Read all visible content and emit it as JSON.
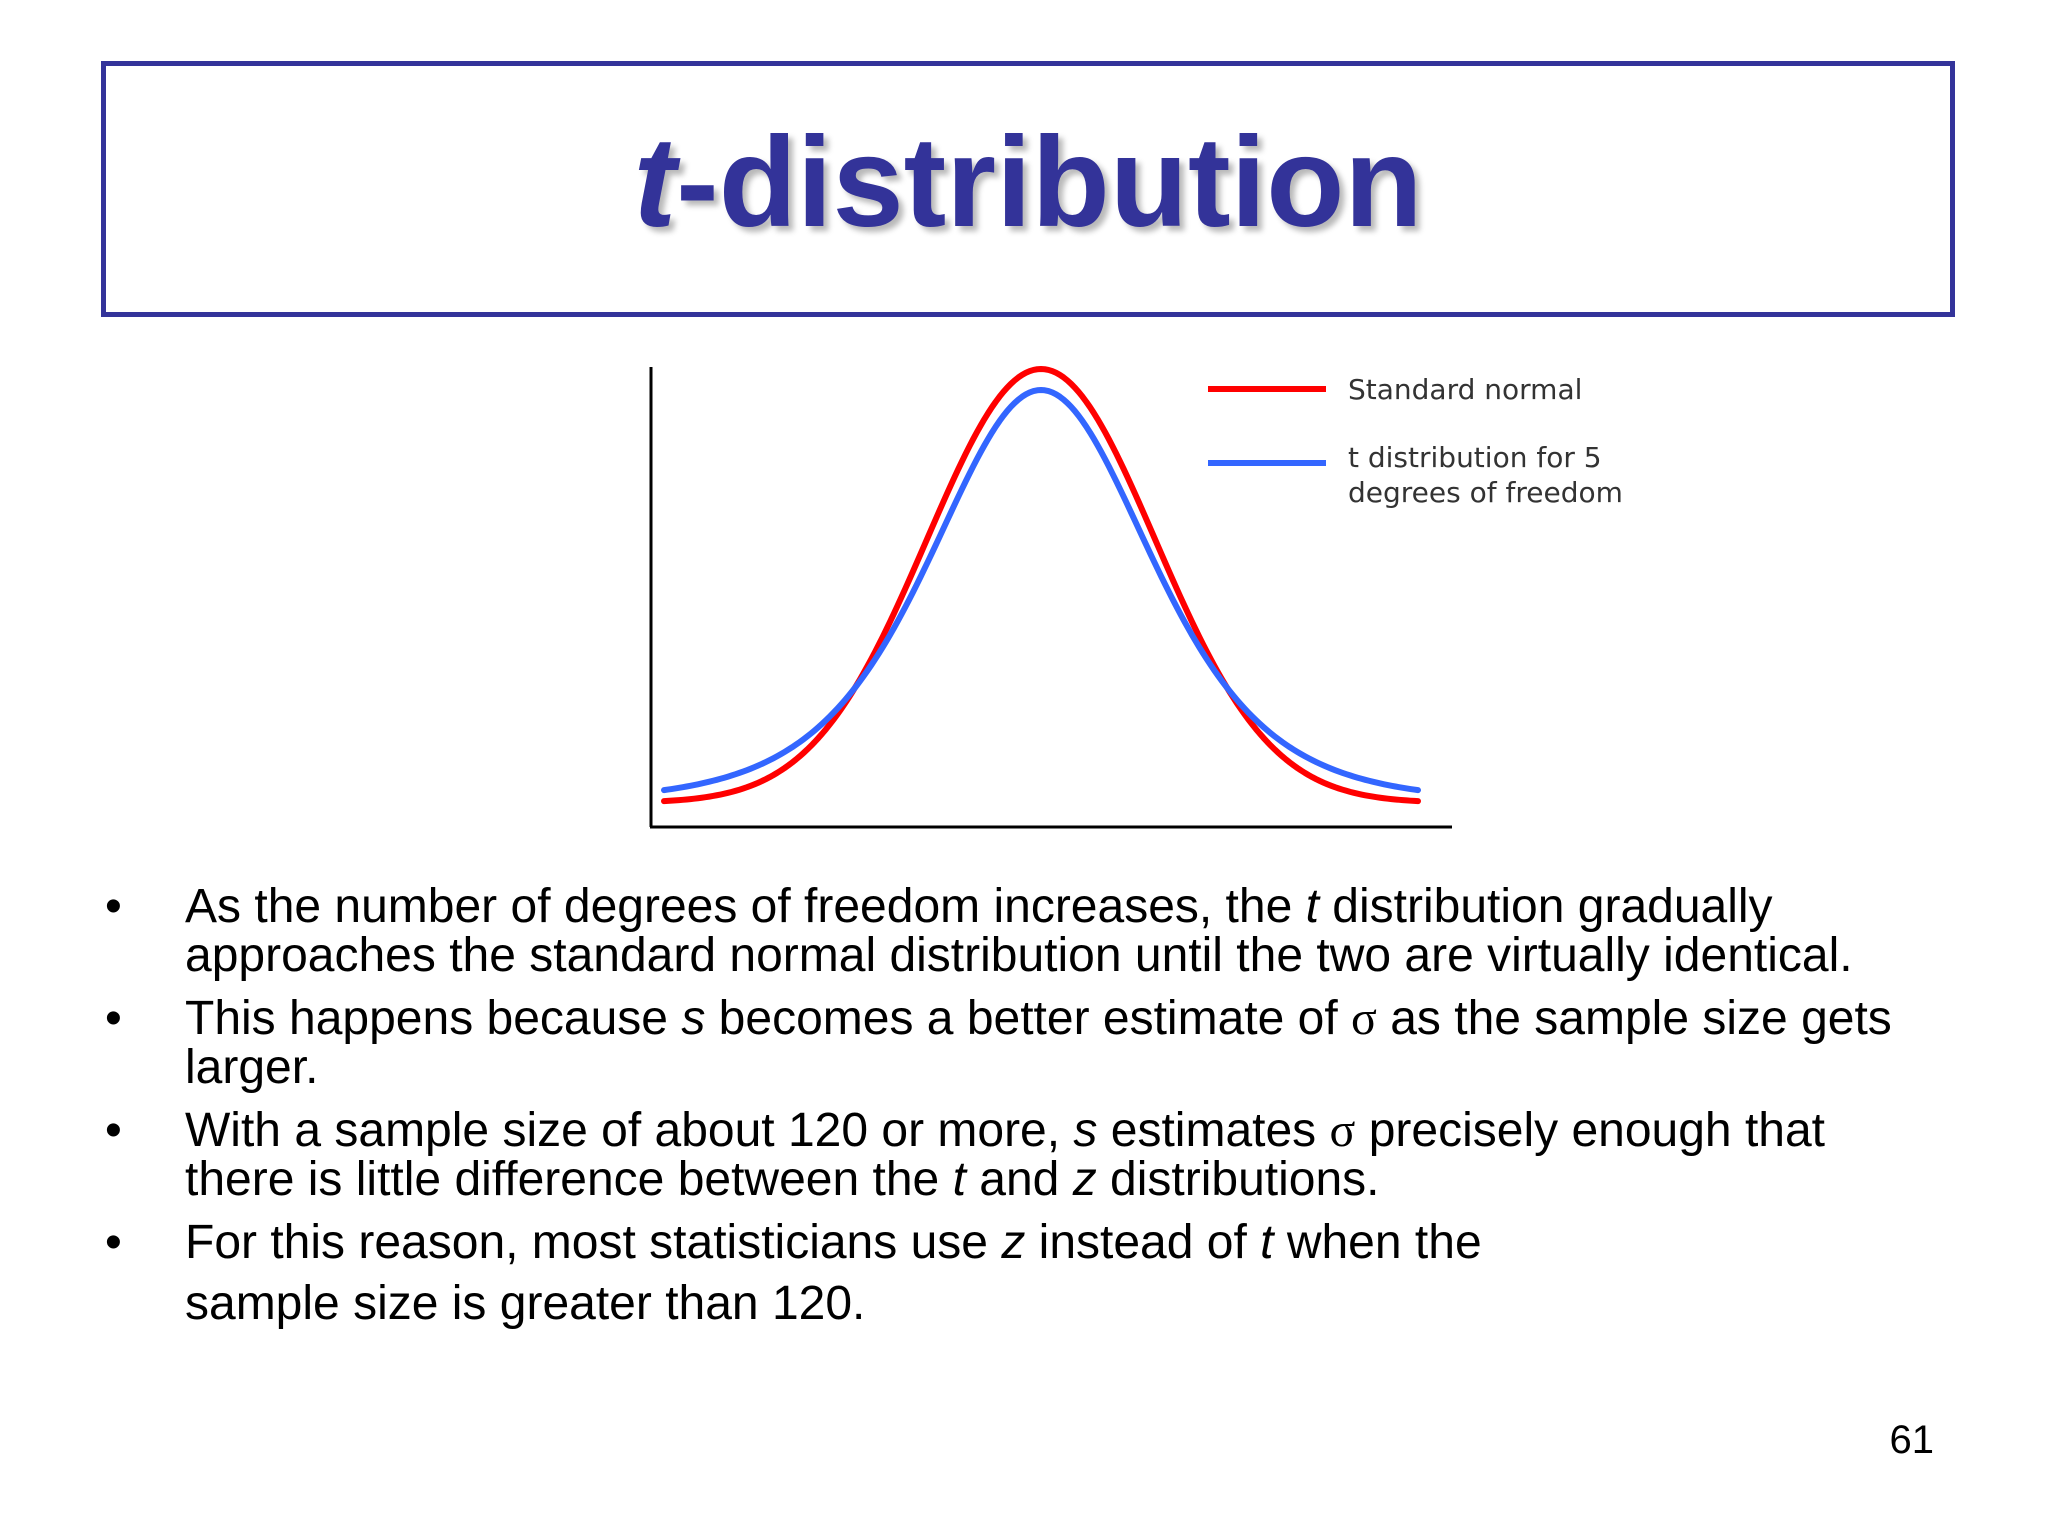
{
  "title": {
    "italic_part": "t",
    "rest": "-distribution"
  },
  "chart_data": {
    "type": "line",
    "xlabel": "",
    "ylabel": "",
    "grid": false,
    "legend_placement": "top-right",
    "legend": [
      {
        "label_lines": [
          "Standard normal"
        ],
        "color": "#ff0000"
      },
      {
        "label_lines": [
          "t distribution for 5",
          "degrees of freedom"
        ],
        "color": "#3366ff"
      }
    ],
    "series": [
      {
        "name": "Standard normal",
        "color": "#ff0000",
        "distribution": "normal",
        "x_range": [
          -3.3,
          3.3
        ]
      },
      {
        "name": "t distribution for 5 degrees of freedom",
        "color": "#3366ff",
        "distribution": "t",
        "df": 5,
        "x_range": [
          -3.3,
          3.3
        ]
      }
    ]
  },
  "bullets": [
    {
      "marker": "•",
      "parts": [
        {
          "t": "As the number of degrees of freedom increases, the "
        },
        {
          "t": "t",
          "i": true
        },
        {
          "t": " distribution gradually approaches the standard normal distribution until the two are virtually identical."
        }
      ]
    },
    {
      "marker": "•",
      "parts": [
        {
          "t": "This happens because "
        },
        {
          "t": "s",
          "i": true
        },
        {
          "t": " becomes a better estimate of "
        },
        {
          "t": "σ",
          "serif": true
        },
        {
          "t": " as the sample size gets larger."
        }
      ]
    },
    {
      "marker": "•",
      "parts": [
        {
          "t": "With a sample size of about 120 or more, "
        },
        {
          "t": "s",
          "i": true
        },
        {
          "t": " estimates "
        },
        {
          "t": "σ",
          "serif": true
        },
        {
          "t": " precisely enough that there is little difference between the "
        },
        {
          "t": "t",
          "i": true
        },
        {
          "t": " and "
        },
        {
          "t": "z",
          "i": true
        },
        {
          "t": " distributions."
        }
      ]
    },
    {
      "marker": "•",
      "parts": [
        {
          "t": "For this reason, most statisticians use "
        },
        {
          "t": "z",
          "i": true
        },
        {
          "t": " instead of "
        },
        {
          "t": "t",
          "i": true
        },
        {
          "t": " when the"
        }
      ],
      "continuation": "sample size is greater than 120."
    }
  ],
  "page_number": "61"
}
